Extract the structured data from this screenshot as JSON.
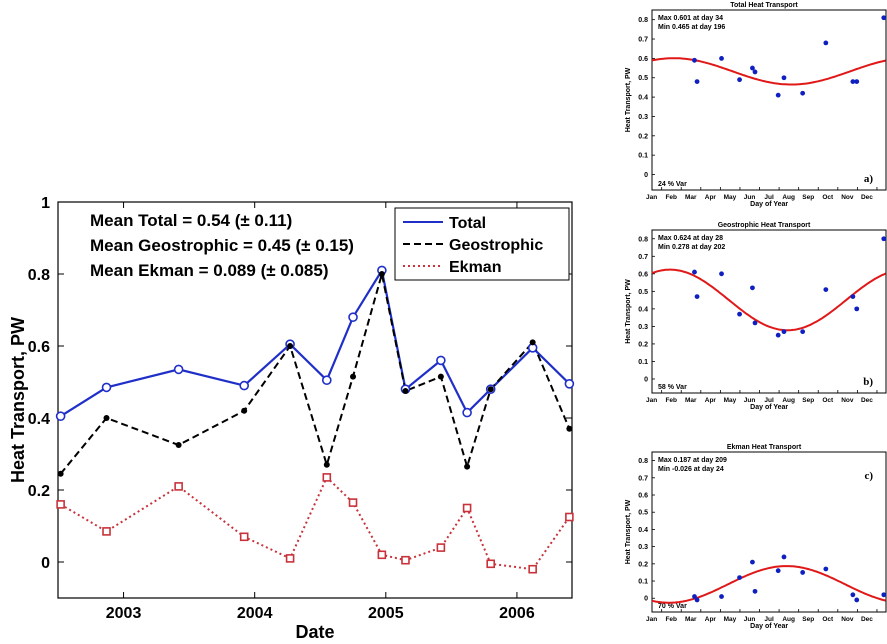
{
  "main_chart": {
    "type": "line",
    "xlabel": "Date",
    "ylabel": "Heat Transport, PW",
    "xlim": [
      2002.5,
      2006.42
    ],
    "ylim": [
      -0.1,
      1.0
    ],
    "xticks": [
      2003,
      2004,
      2005,
      2006
    ],
    "xtick_labels": [
      "2003",
      "2004",
      "2005",
      "2006"
    ],
    "yticks": [
      0,
      0.2,
      0.4,
      0.6,
      0.8,
      1
    ],
    "ytick_labels": [
      "0",
      "0.2",
      "0.4",
      "0.6",
      "0.8",
      "1"
    ],
    "annotations": [
      "Mean Total = 0.54 (± 0.11)",
      "Mean Geostrophic = 0.45 (± 0.15)",
      "Mean Ekman = 0.089 (± 0.085)"
    ],
    "legend_position": "top-right",
    "series": [
      {
        "name": "Total",
        "color": "#1f2fc8",
        "style": "solid",
        "marker": "circle",
        "x": [
          2002.52,
          2002.87,
          2003.42,
          2003.92,
          2004.27,
          2004.55,
          2004.75,
          2004.97,
          2005.15,
          2005.42,
          2005.62,
          2005.8,
          2006.12,
          2006.4
        ],
        "y": [
          0.405,
          0.485,
          0.535,
          0.49,
          0.605,
          0.505,
          0.68,
          0.81,
          0.48,
          0.56,
          0.415,
          0.48,
          0.595,
          0.495
        ]
      },
      {
        "name": "Geostrophic",
        "color": "#000000",
        "style": "dashed",
        "marker": "dot",
        "x": [
          2002.52,
          2002.87,
          2003.42,
          2003.92,
          2004.27,
          2004.55,
          2004.75,
          2004.97,
          2005.15,
          2005.42,
          2005.62,
          2005.8,
          2006.12,
          2006.4
        ],
        "y": [
          0.245,
          0.4,
          0.325,
          0.42,
          0.6,
          0.27,
          0.515,
          0.8,
          0.475,
          0.515,
          0.265,
          0.48,
          0.61,
          0.37
        ]
      },
      {
        "name": "Ekman",
        "color": "#c8323a",
        "style": "dotted",
        "marker": "square",
        "x": [
          2002.52,
          2002.87,
          2003.42,
          2003.92,
          2004.27,
          2004.55,
          2004.75,
          2004.97,
          2005.15,
          2005.42,
          2005.62,
          2005.8,
          2006.12,
          2006.4
        ],
        "y": [
          0.16,
          0.085,
          0.21,
          0.07,
          0.01,
          0.235,
          0.165,
          0.02,
          0.005,
          0.04,
          0.15,
          -0.005,
          -0.02,
          0.125
        ]
      }
    ]
  },
  "seasonal_panels": [
    {
      "title": "Total Heat Transport",
      "panel_label": "a)",
      "ylabel": "Heat Transport, PW",
      "xlabel": "Day of Year",
      "stats": [
        "Max 0.601 at day 34",
        "Min 0.465 at day 196"
      ],
      "var_text": "24 % Var",
      "text_position": "top",
      "ylim": [
        -0.08,
        0.85
      ],
      "yticks": [
        0,
        0.1,
        0.2,
        0.3,
        0.4,
        0.5,
        0.6,
        0.7,
        0.8
      ],
      "ytick_labels": [
        "0",
        "0.1",
        "0.2",
        "0.3",
        "0.4",
        "0.5",
        "0.6",
        "0.7",
        "0.8"
      ],
      "month_labels": [
        "Jan",
        "Feb",
        "Mar",
        "Apr",
        "May",
        "Jun",
        "Jul",
        "Aug",
        "Sep",
        "Oct",
        "Nov",
        "Dec"
      ],
      "fit": {
        "mean": 0.533,
        "amplitude": 0.068,
        "peak_day": 34
      },
      "points": {
        "day": [
          66,
          70,
          108,
          136,
          156,
          160,
          196,
          205,
          234,
          270,
          312,
          318,
          360
        ],
        "value": [
          0.59,
          0.48,
          0.6,
          0.49,
          0.55,
          0.53,
          0.41,
          0.5,
          0.42,
          0.68,
          0.48,
          0.48,
          0.81
        ]
      }
    },
    {
      "title": "Geostrophic Heat Transport",
      "panel_label": "b)",
      "ylabel": "Heat Transport, PW",
      "xlabel": "Day of Year",
      "stats": [
        "Max 0.624 at day 28",
        "Min 0.278 at day 202"
      ],
      "var_text": "58 % Var",
      "text_position": "top",
      "ylim": [
        -0.08,
        0.85
      ],
      "yticks": [
        0,
        0.1,
        0.2,
        0.3,
        0.4,
        0.5,
        0.6,
        0.7,
        0.8
      ],
      "ytick_labels": [
        "0",
        "0.1",
        "0.2",
        "0.3",
        "0.4",
        "0.5",
        "0.6",
        "0.7",
        "0.8"
      ],
      "month_labels": [
        "Jan",
        "Feb",
        "Mar",
        "Apr",
        "May",
        "Jun",
        "Jul",
        "Aug",
        "Sep",
        "Oct",
        "Nov",
        "Dec"
      ],
      "fit": {
        "mean": 0.451,
        "amplitude": 0.173,
        "peak_day": 28
      },
      "points": {
        "day": [
          66,
          70,
          108,
          136,
          156,
          160,
          196,
          205,
          234,
          270,
          312,
          318,
          360
        ],
        "value": [
          0.61,
          0.47,
          0.6,
          0.37,
          0.52,
          0.32,
          0.25,
          0.27,
          0.27,
          0.51,
          0.47,
          0.4,
          0.8
        ]
      }
    },
    {
      "title": "Ekman Heat Transport",
      "panel_label": "c)",
      "ylabel": "Heat Transport, PW",
      "xlabel": "Day of Year",
      "stats": [
        "Max 0.187 at day 209",
        "Min -0.026 at day 24"
      ],
      "var_text": "70 % Var",
      "text_position": "top",
      "ylim": [
        -0.08,
        0.85
      ],
      "yticks": [
        0,
        0.1,
        0.2,
        0.3,
        0.4,
        0.5,
        0.6,
        0.7,
        0.8
      ],
      "ytick_labels": [
        "0",
        "0.1",
        "0.2",
        "0.3",
        "0.4",
        "0.5",
        "0.6",
        "0.7",
        "0.8"
      ],
      "month_labels": [
        "Jan",
        "Feb",
        "Mar",
        "Apr",
        "May",
        "Jun",
        "Jul",
        "Aug",
        "Sep",
        "Oct",
        "Nov",
        "Dec"
      ],
      "fit": {
        "mean": 0.0805,
        "amplitude": 0.1065,
        "peak_day": 209
      },
      "points": {
        "day": [
          66,
          70,
          108,
          136,
          156,
          160,
          196,
          205,
          234,
          270,
          312,
          318,
          360
        ],
        "value": [
          0.01,
          -0.01,
          0.01,
          0.12,
          0.21,
          0.04,
          0.16,
          0.24,
          0.15,
          0.17,
          0.02,
          -0.01,
          0.02
        ]
      }
    }
  ],
  "colors": {
    "fit_curve": "#e01818",
    "points": "#1020c0"
  }
}
